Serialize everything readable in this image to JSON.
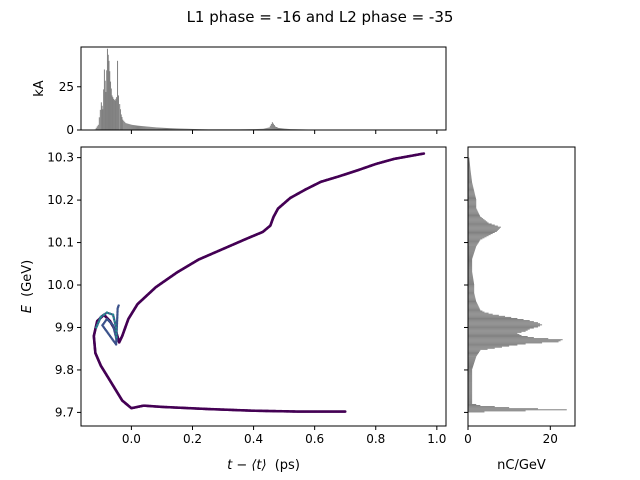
{
  "chart_data": {
    "type": "scatter",
    "title": "L1 phase = -16 and L2 phase = -35",
    "colors": {
      "hist": "#808080",
      "scatter_low": "#440154",
      "scatter_mid": "#3b528b",
      "scatter_high": "#21918c",
      "frame": "#000000"
    },
    "main": {
      "xlabel_pre": "t − ⟨t⟩",
      "xlabel_unit": "(ps)",
      "ylabel_var": "E",
      "ylabel_unit": "(GeV)",
      "xlim": [
        -0.165,
        1.03
      ],
      "ylim": [
        9.668,
        10.325
      ],
      "xticks": [
        0.0,
        0.2,
        0.4,
        0.6,
        0.8,
        1.0
      ],
      "xtick_labels": [
        "0.0",
        "0.2",
        "0.4",
        "0.6",
        "0.8",
        "1.0"
      ],
      "yticks": [
        9.7,
        9.8,
        9.9,
        10.0,
        10.1,
        10.2,
        10.3
      ],
      "ytick_labels": [
        "9.7",
        "9.8",
        "9.9",
        "10.0",
        "10.1",
        "10.2",
        "10.3"
      ],
      "curve": [
        [
          0.7,
          9.702
        ],
        [
          0.55,
          9.702
        ],
        [
          0.4,
          9.704
        ],
        [
          0.25,
          9.708
        ],
        [
          0.1,
          9.713
        ],
        [
          0.04,
          9.716
        ],
        [
          0.0,
          9.71
        ],
        [
          -0.03,
          9.728
        ],
        [
          -0.07,
          9.775
        ],
        [
          -0.1,
          9.81
        ],
        [
          -0.118,
          9.84
        ],
        [
          -0.123,
          9.88
        ],
        [
          -0.112,
          9.915
        ],
        [
          -0.09,
          9.93
        ],
        [
          -0.07,
          9.915
        ],
        [
          -0.05,
          9.89
        ],
        [
          -0.04,
          9.865
        ],
        [
          -0.03,
          9.88
        ],
        [
          -0.01,
          9.92
        ],
        [
          0.02,
          9.955
        ],
        [
          0.08,
          9.995
        ],
        [
          0.15,
          10.03
        ],
        [
          0.22,
          10.06
        ],
        [
          0.3,
          10.085
        ],
        [
          0.38,
          10.11
        ],
        [
          0.43,
          10.125
        ],
        [
          0.455,
          10.14
        ],
        [
          0.465,
          10.16
        ],
        [
          0.48,
          10.18
        ],
        [
          0.52,
          10.205
        ],
        [
          0.57,
          10.225
        ],
        [
          0.62,
          10.243
        ],
        [
          0.68,
          10.256
        ],
        [
          0.74,
          10.27
        ],
        [
          0.8,
          10.285
        ],
        [
          0.86,
          10.297
        ],
        [
          0.96,
          10.31
        ]
      ],
      "core": [
        [
          -0.115,
          9.9
        ],
        [
          -0.1,
          9.925
        ],
        [
          -0.08,
          9.935
        ],
        [
          -0.06,
          9.93
        ],
        [
          -0.05,
          9.9
        ],
        [
          -0.048,
          9.87
        ],
        [
          -0.06,
          9.905
        ],
        [
          -0.08,
          9.92
        ],
        [
          -0.095,
          9.905
        ],
        [
          -0.07,
          9.88
        ],
        [
          -0.05,
          9.86
        ],
        [
          -0.045,
          9.945
        ],
        [
          -0.04,
          9.955
        ]
      ]
    },
    "top_hist": {
      "ylabel": "kA",
      "ylim": [
        0,
        48
      ],
      "yticks": [
        0,
        25
      ],
      "ytick_labels": [
        "0",
        "25"
      ],
      "bins": [
        [
          -0.12,
          0.4
        ],
        [
          -0.11,
          3
        ],
        [
          -0.1,
          16
        ],
        [
          -0.095,
          12
        ],
        [
          -0.09,
          35
        ],
        [
          -0.085,
          22
        ],
        [
          -0.08,
          47
        ],
        [
          -0.075,
          40
        ],
        [
          -0.07,
          28
        ],
        [
          -0.065,
          20
        ],
        [
          -0.06,
          18
        ],
        [
          -0.055,
          17
        ],
        [
          -0.05,
          19
        ],
        [
          -0.047,
          40
        ],
        [
          -0.044,
          20
        ],
        [
          -0.04,
          15
        ],
        [
          -0.035,
          9
        ],
        [
          -0.03,
          6
        ],
        [
          -0.02,
          4
        ],
        [
          -0.01,
          3.5
        ],
        [
          0.0,
          3
        ],
        [
          0.02,
          2.5
        ],
        [
          0.05,
          2
        ],
        [
          0.08,
          1.5
        ],
        [
          0.11,
          1.2
        ],
        [
          0.15,
          0.9
        ],
        [
          0.2,
          0.6
        ],
        [
          0.25,
          0.4
        ],
        [
          0.3,
          0.4
        ],
        [
          0.35,
          0.4
        ],
        [
          0.4,
          0.5
        ],
        [
          0.43,
          0.7
        ],
        [
          0.45,
          1.5
        ],
        [
          0.46,
          4.5
        ],
        [
          0.47,
          2
        ],
        [
          0.48,
          1.2
        ],
        [
          0.5,
          0.8
        ],
        [
          0.52,
          0.5
        ],
        [
          0.6,
          0.2
        ],
        [
          0.7,
          0.1
        ],
        [
          0.8,
          0.1
        ],
        [
          0.9,
          0.1
        ]
      ]
    },
    "side_hist": {
      "xlabel": "nC/GeV",
      "xlim": [
        0,
        26
      ],
      "xticks": [
        0,
        20
      ],
      "xtick_labels": [
        "0",
        "20"
      ],
      "bins": [
        [
          9.7,
          4
        ],
        [
          9.705,
          24
        ],
        [
          9.71,
          10
        ],
        [
          9.715,
          3
        ],
        [
          9.72,
          1
        ],
        [
          9.77,
          1
        ],
        [
          9.8,
          1
        ],
        [
          9.83,
          2
        ],
        [
          9.845,
          3
        ],
        [
          9.855,
          10
        ],
        [
          9.86,
          14
        ],
        [
          9.865,
          22
        ],
        [
          9.87,
          23
        ],
        [
          9.875,
          16
        ],
        [
          9.88,
          13
        ],
        [
          9.885,
          12
        ],
        [
          9.89,
          14
        ],
        [
          9.895,
          15
        ],
        [
          9.9,
          17
        ],
        [
          9.905,
          18
        ],
        [
          9.91,
          17
        ],
        [
          9.915,
          15
        ],
        [
          9.92,
          12
        ],
        [
          9.925,
          9
        ],
        [
          9.93,
          6
        ],
        [
          9.935,
          4
        ],
        [
          9.94,
          3
        ],
        [
          9.96,
          2
        ],
        [
          9.98,
          1.5
        ],
        [
          10.0,
          1.5
        ],
        [
          10.03,
          1
        ],
        [
          10.06,
          1
        ],
        [
          10.09,
          2
        ],
        [
          10.105,
          3
        ],
        [
          10.115,
          5
        ],
        [
          10.125,
          7
        ],
        [
          10.135,
          8
        ],
        [
          10.145,
          5
        ],
        [
          10.16,
          3
        ],
        [
          10.18,
          2
        ],
        [
          10.2,
          2
        ],
        [
          10.22,
          1.5
        ],
        [
          10.24,
          1
        ],
        [
          10.27,
          0.6
        ],
        [
          10.3,
          0.3
        ]
      ]
    }
  }
}
